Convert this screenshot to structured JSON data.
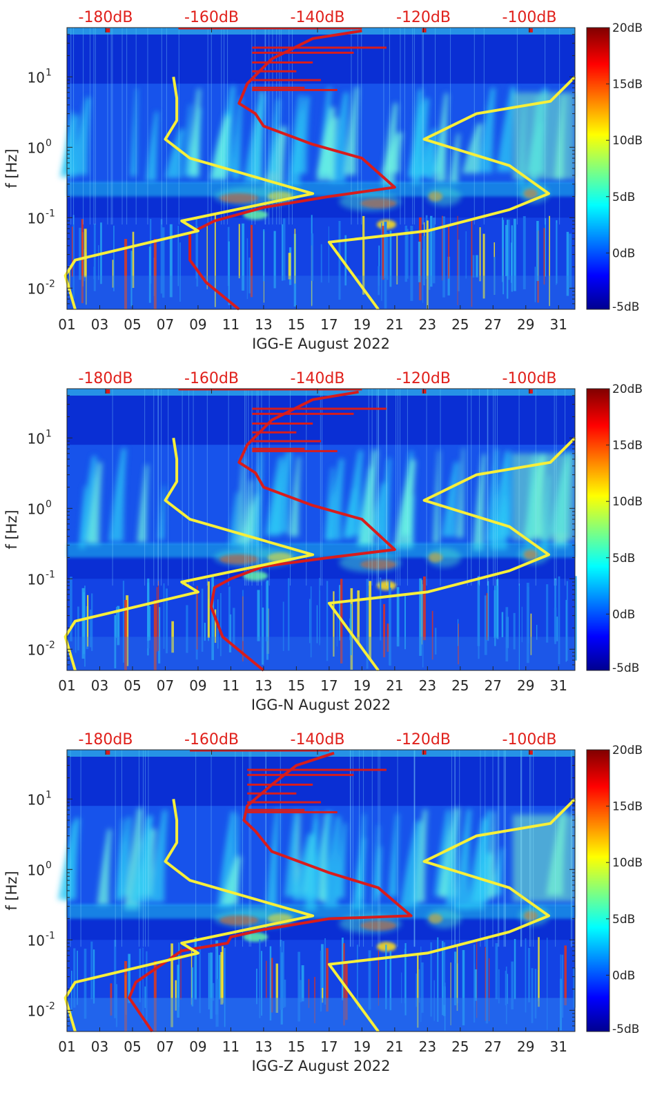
{
  "colors": {
    "yellow_line": "#f7ef3a",
    "red_line": "#d81c1c",
    "top_label": "#e0201b",
    "axis": "#262626"
  },
  "chart_data": [
    {
      "type": "heatmap",
      "xlabel": "IGG-E August 2022",
      "ylabel": "f [Hz]",
      "x_tick_labels": [
        "01",
        "03",
        "05",
        "07",
        "09",
        "11",
        "13",
        "15",
        "17",
        "19",
        "21",
        "23",
        "25",
        "27",
        "29",
        "31"
      ],
      "y_tick_labels": [
        "10^-2",
        "10^-1",
        "10^0",
        "10^1"
      ],
      "top_axis_labels": [
        "-180dB",
        "-160dB",
        "-140dB",
        "-120dB",
        "-100dB"
      ],
      "colorbar_labels": [
        "20dB",
        "15dB",
        "10dB",
        "5dB",
        "0dB",
        "-5dB"
      ],
      "colorbar_range": [
        -5,
        20
      ],
      "ylim": [
        0.005,
        50
      ],
      "yscale": "log"
    },
    {
      "type": "heatmap",
      "xlabel": "IGG-N August 2022",
      "ylabel": "f [Hz]",
      "x_tick_labels": [
        "01",
        "03",
        "05",
        "07",
        "09",
        "11",
        "13",
        "15",
        "17",
        "19",
        "21",
        "23",
        "25",
        "27",
        "29",
        "31"
      ],
      "y_tick_labels": [
        "10^-2",
        "10^-1",
        "10^0",
        "10^1"
      ],
      "top_axis_labels": [
        "-180dB",
        "-160dB",
        "-140dB",
        "-120dB",
        "-100dB"
      ],
      "colorbar_labels": [
        "20dB",
        "15dB",
        "10dB",
        "5dB",
        "0dB",
        "-5dB"
      ],
      "colorbar_range": [
        -5,
        20
      ],
      "ylim": [
        0.005,
        50
      ],
      "yscale": "log"
    },
    {
      "type": "heatmap",
      "xlabel": "IGG-Z August 2022",
      "ylabel": "f [Hz]",
      "x_tick_labels": [
        "01",
        "03",
        "05",
        "07",
        "09",
        "11",
        "13",
        "15",
        "17",
        "19",
        "21",
        "23",
        "25",
        "27",
        "29",
        "31"
      ],
      "y_tick_labels": [
        "10^-2",
        "10^-1",
        "10^0",
        "10^1"
      ],
      "top_axis_labels": [
        "-180dB",
        "-160dB",
        "-140dB",
        "-120dB",
        "-100dB"
      ],
      "colorbar_labels": [
        "20dB",
        "15dB",
        "10dB",
        "5dB",
        "0dB",
        "-5dB"
      ],
      "colorbar_range": [
        -5,
        20
      ],
      "ylim": [
        0.005,
        50
      ],
      "yscale": "log"
    }
  ]
}
